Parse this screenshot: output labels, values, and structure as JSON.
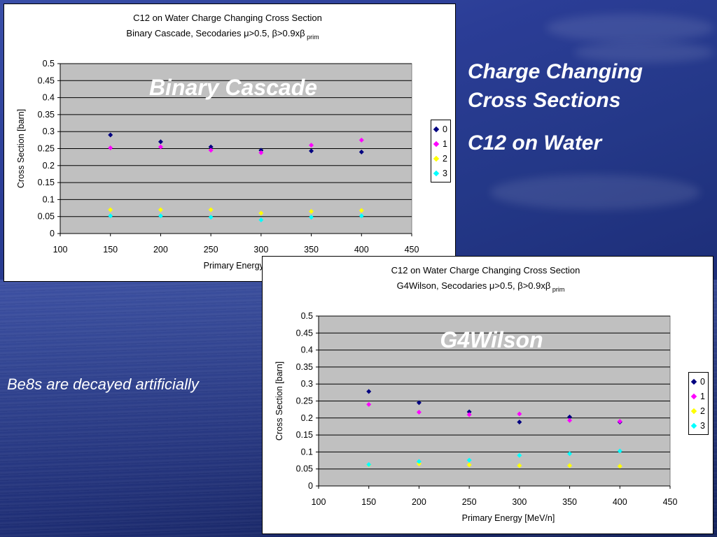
{
  "slide": {
    "title_line1": "Charge Changing",
    "title_line2": "Cross Sections",
    "title_line3": "C12 on Water",
    "note": "Be8s are decayed artificially"
  },
  "chart_data": [
    {
      "type": "scatter",
      "title": "C12 on Water Charge Changing Cross Section",
      "subtitle_main": "Binary Cascade, Secodaries  μ>0.5,  β>0.9xβ",
      "subtitle_sub": "prim",
      "overlay_label": "Binary Cascade",
      "xlabel": "Primary Energy [MeV/n]",
      "ylabel": "Cross Section [barn]",
      "xlim": [
        100,
        450
      ],
      "ylim": [
        0,
        0.5
      ],
      "x_ticks": [
        "100",
        "150",
        "200",
        "250",
        "300",
        "350",
        "400",
        "450"
      ],
      "y_ticks": [
        "0",
        "0.05",
        "0.1",
        "0.15",
        "0.2",
        "0.25",
        "0.3",
        "0.35",
        "0.4",
        "0.45",
        "0.5"
      ],
      "grid": true,
      "legend_position": "right",
      "x": [
        150,
        200,
        250,
        300,
        350,
        400
      ],
      "series": [
        {
          "name": "0",
          "color": "#000080",
          "values": [
            0.29,
            0.27,
            0.255,
            0.245,
            0.243,
            0.24
          ]
        },
        {
          "name": "1",
          "color": "#ff00ff",
          "values": [
            0.252,
            0.255,
            0.245,
            0.238,
            0.26,
            0.275
          ]
        },
        {
          "name": "2",
          "color": "#ffff00",
          "values": [
            0.07,
            0.07,
            0.07,
            0.06,
            0.065,
            0.068
          ]
        },
        {
          "name": "3",
          "color": "#00ffff",
          "values": [
            0.052,
            0.052,
            0.048,
            0.04,
            0.048,
            0.052
          ]
        }
      ]
    },
    {
      "type": "scatter",
      "title": "C12 on Water Charge Changing Cross Section",
      "subtitle_main": "G4Wilson, Secodaries  μ>0.5,  β>0.9xβ",
      "subtitle_sub": "prim",
      "overlay_label": "G4Wilson",
      "xlabel": "Primary Energy [MeV/n]",
      "ylabel": "Cross Section [barn]",
      "xlim": [
        100,
        450
      ],
      "ylim": [
        0,
        0.5
      ],
      "x_ticks": [
        "100",
        "150",
        "200",
        "250",
        "300",
        "350",
        "400",
        "450"
      ],
      "y_ticks": [
        "0",
        "0.05",
        "0.1",
        "0.15",
        "0.2",
        "0.25",
        "0.3",
        "0.35",
        "0.4",
        "0.45",
        "0.5"
      ],
      "grid": true,
      "legend_position": "right",
      "x": [
        150,
        200,
        250,
        300,
        350,
        400
      ],
      "series": [
        {
          "name": "0",
          "color": "#000080",
          "values": [
            0.278,
            0.245,
            0.218,
            0.188,
            0.203,
            0.188
          ]
        },
        {
          "name": "1",
          "color": "#ff00ff",
          "values": [
            0.24,
            0.217,
            0.21,
            0.212,
            0.193,
            0.19
          ]
        },
        {
          "name": "2",
          "color": "#ffff00",
          "values": [
            0.062,
            0.065,
            0.062,
            0.06,
            0.06,
            0.058
          ]
        },
        {
          "name": "3",
          "color": "#00ffff",
          "values": [
            0.063,
            0.072,
            0.076,
            0.09,
            0.095,
            0.103
          ]
        }
      ]
    }
  ]
}
